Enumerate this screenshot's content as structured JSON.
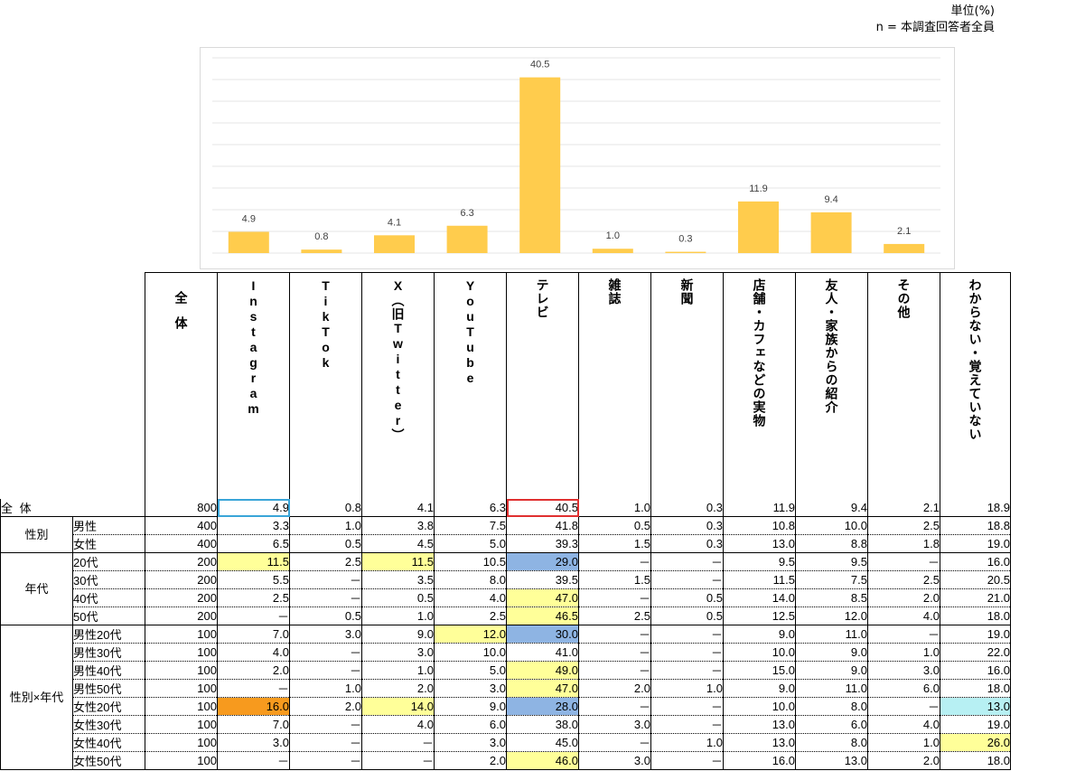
{
  "note": {
    "unit": "単位(%)",
    "base": "n = 本調査回答者全員"
  },
  "colors": {
    "bar": "#FFCC4D",
    "grid": "#E6E6E6",
    "frame": "#D9D9D9",
    "hl_yellow": "#FFFF99",
    "hl_blue": "#8EB4E3",
    "hl_orange": "#F79A1E",
    "hl_cyan": "#B7F0F3"
  },
  "chart_data": {
    "type": "bar",
    "categories": [
      "Instagram",
      "TikTok",
      "X（旧Twitter）",
      "YouTube",
      "テレビ",
      "雑誌",
      "新聞",
      "店舗・カフェなどの実物",
      "友人・家族からの紹介",
      "その他"
    ],
    "values": [
      4.9,
      0.8,
      4.1,
      6.3,
      40.5,
      1.0,
      0.3,
      11.9,
      9.4,
      2.1
    ],
    "value_labels": [
      "4.9",
      "0.8",
      "4.1",
      "6.3",
      "40.5",
      "1.0",
      "0.3",
      "11.9",
      "9.4",
      "2.1"
    ],
    "ylim": [
      0,
      45
    ],
    "grid": true
  },
  "table": {
    "headers": [
      {
        "text": "全体",
        "bold": false
      },
      {
        "text": "Instagram",
        "bold": false
      },
      {
        "text": "TikTok",
        "bold": false
      },
      {
        "text": "X（旧Twitter）",
        "bold": false
      },
      {
        "text": "YouTube",
        "bold": false
      },
      {
        "text": "テレビ",
        "bold": true
      },
      {
        "text": "雑誌",
        "bold": false
      },
      {
        "text": "新聞",
        "bold": false
      },
      {
        "text": "店舗・カフェなどの実物",
        "bold": false
      },
      {
        "text": "友人・家族からの紹介",
        "bold": false
      },
      {
        "text": "その他",
        "bold": false
      },
      {
        "text": "わからない・覚えていない",
        "bold": false
      }
    ],
    "total_label": "全 体",
    "groups": [
      {
        "label": "性別",
        "rows": [
          {
            "label": "男性",
            "n": "400",
            "values": [
              "3.3",
              "1.0",
              "3.8",
              "7.5",
              "41.8",
              "0.5",
              "0.3",
              "10.8",
              "10.0",
              "2.5",
              "18.8"
            ],
            "hl": {}
          },
          {
            "label": "女性",
            "n": "400",
            "values": [
              "6.5",
              "0.5",
              "4.5",
              "5.0",
              "39.3",
              "1.5",
              "0.3",
              "13.0",
              "8.8",
              "1.8",
              "19.0"
            ],
            "hl": {}
          }
        ]
      },
      {
        "label": "年代",
        "rows": [
          {
            "label": "20代",
            "n": "200",
            "values": [
              "11.5",
              "2.5",
              "11.5",
              "10.5",
              "29.0",
              "－",
              "－",
              "9.5",
              "9.5",
              "－",
              "16.0"
            ],
            "hl": {
              "0": "yellow",
              "2": "yellow",
              "4": "blue"
            }
          },
          {
            "label": "30代",
            "n": "200",
            "values": [
              "5.5",
              "－",
              "3.5",
              "8.0",
              "39.5",
              "1.5",
              "－",
              "11.5",
              "7.5",
              "2.5",
              "20.5"
            ],
            "hl": {}
          },
          {
            "label": "40代",
            "n": "200",
            "values": [
              "2.5",
              "－",
              "0.5",
              "4.0",
              "47.0",
              "－",
              "0.5",
              "14.0",
              "8.5",
              "2.0",
              "21.0"
            ],
            "hl": {
              "4": "yellow"
            }
          },
          {
            "label": "50代",
            "n": "200",
            "values": [
              "－",
              "0.5",
              "1.0",
              "2.5",
              "46.5",
              "2.5",
              "0.5",
              "12.5",
              "12.0",
              "4.0",
              "18.0"
            ],
            "hl": {
              "4": "yellow"
            }
          }
        ]
      },
      {
        "label": "性別×年代",
        "rows": [
          {
            "label": "男性20代",
            "n": "100",
            "values": [
              "7.0",
              "3.0",
              "9.0",
              "12.0",
              "30.0",
              "－",
              "－",
              "9.0",
              "11.0",
              "－",
              "19.0"
            ],
            "hl": {
              "3": "yellow",
              "4": "blue"
            }
          },
          {
            "label": "男性30代",
            "n": "100",
            "values": [
              "4.0",
              "－",
              "3.0",
              "10.0",
              "41.0",
              "－",
              "－",
              "10.0",
              "9.0",
              "1.0",
              "22.0"
            ],
            "hl": {}
          },
          {
            "label": "男性40代",
            "n": "100",
            "values": [
              "2.0",
              "－",
              "1.0",
              "5.0",
              "49.0",
              "－",
              "－",
              "15.0",
              "9.0",
              "3.0",
              "16.0"
            ],
            "hl": {
              "4": "yellow"
            }
          },
          {
            "label": "男性50代",
            "n": "100",
            "values": [
              "－",
              "1.0",
              "2.0",
              "3.0",
              "47.0",
              "2.0",
              "1.0",
              "9.0",
              "11.0",
              "6.0",
              "18.0"
            ],
            "hl": {
              "4": "yellow"
            }
          },
          {
            "label": "女性20代",
            "n": "100",
            "values": [
              "16.0",
              "2.0",
              "14.0",
              "9.0",
              "28.0",
              "－",
              "－",
              "10.0",
              "8.0",
              "－",
              "13.0"
            ],
            "hl": {
              "0": "orange",
              "2": "yellow",
              "4": "blue",
              "10": "cyan"
            }
          },
          {
            "label": "女性30代",
            "n": "100",
            "values": [
              "7.0",
              "－",
              "4.0",
              "6.0",
              "38.0",
              "3.0",
              "－",
              "13.0",
              "6.0",
              "4.0",
              "19.0"
            ],
            "hl": {}
          },
          {
            "label": "女性40代",
            "n": "100",
            "values": [
              "3.0",
              "－",
              "－",
              "3.0",
              "45.0",
              "－",
              "1.0",
              "13.0",
              "8.0",
              "1.0",
              "26.0"
            ],
            "hl": {
              "10": "yellow"
            }
          },
          {
            "label": "女性50代",
            "n": "100",
            "values": [
              "－",
              "－",
              "－",
              "2.0",
              "46.0",
              "3.0",
              "－",
              "16.0",
              "13.0",
              "2.0",
              "18.0"
            ],
            "hl": {
              "4": "yellow"
            }
          }
        ]
      }
    ],
    "total": {
      "n": "800",
      "values": [
        "4.9",
        "0.8",
        "4.1",
        "6.3",
        "40.5",
        "1.0",
        "0.3",
        "11.9",
        "9.4",
        "2.1",
        "18.9"
      ]
    }
  }
}
